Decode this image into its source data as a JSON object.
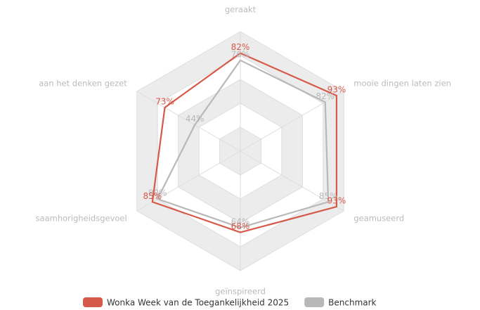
{
  "chart_data": {
    "type": "radar",
    "categories": [
      "geraakt",
      "mooie dingen laten zien",
      "geamuseerd",
      "geïnspireerd",
      "saamhorigheidsgevoel",
      "aan het denken gezet"
    ],
    "series": [
      {
        "name": "Wonka Week van de Toegankelijkheid 2025",
        "color": "#d65a4a",
        "values": [
          82,
          93,
          93,
          68,
          85,
          73
        ],
        "value_labels": [
          "82%",
          "93%",
          "93%",
          "68%",
          "85%",
          "73%"
        ]
      },
      {
        "name": "Benchmark",
        "color": "#b8b8b8",
        "values": [
          76,
          82,
          85,
          64,
          80,
          44
        ],
        "value_labels": [
          "76%",
          "82%",
          "85%",
          "64%",
          "80%",
          "44%"
        ]
      }
    ],
    "rlim": [
      0,
      100
    ],
    "rticks": [
      20,
      40,
      60,
      80,
      100
    ],
    "grid": true,
    "legend": "bottom"
  }
}
